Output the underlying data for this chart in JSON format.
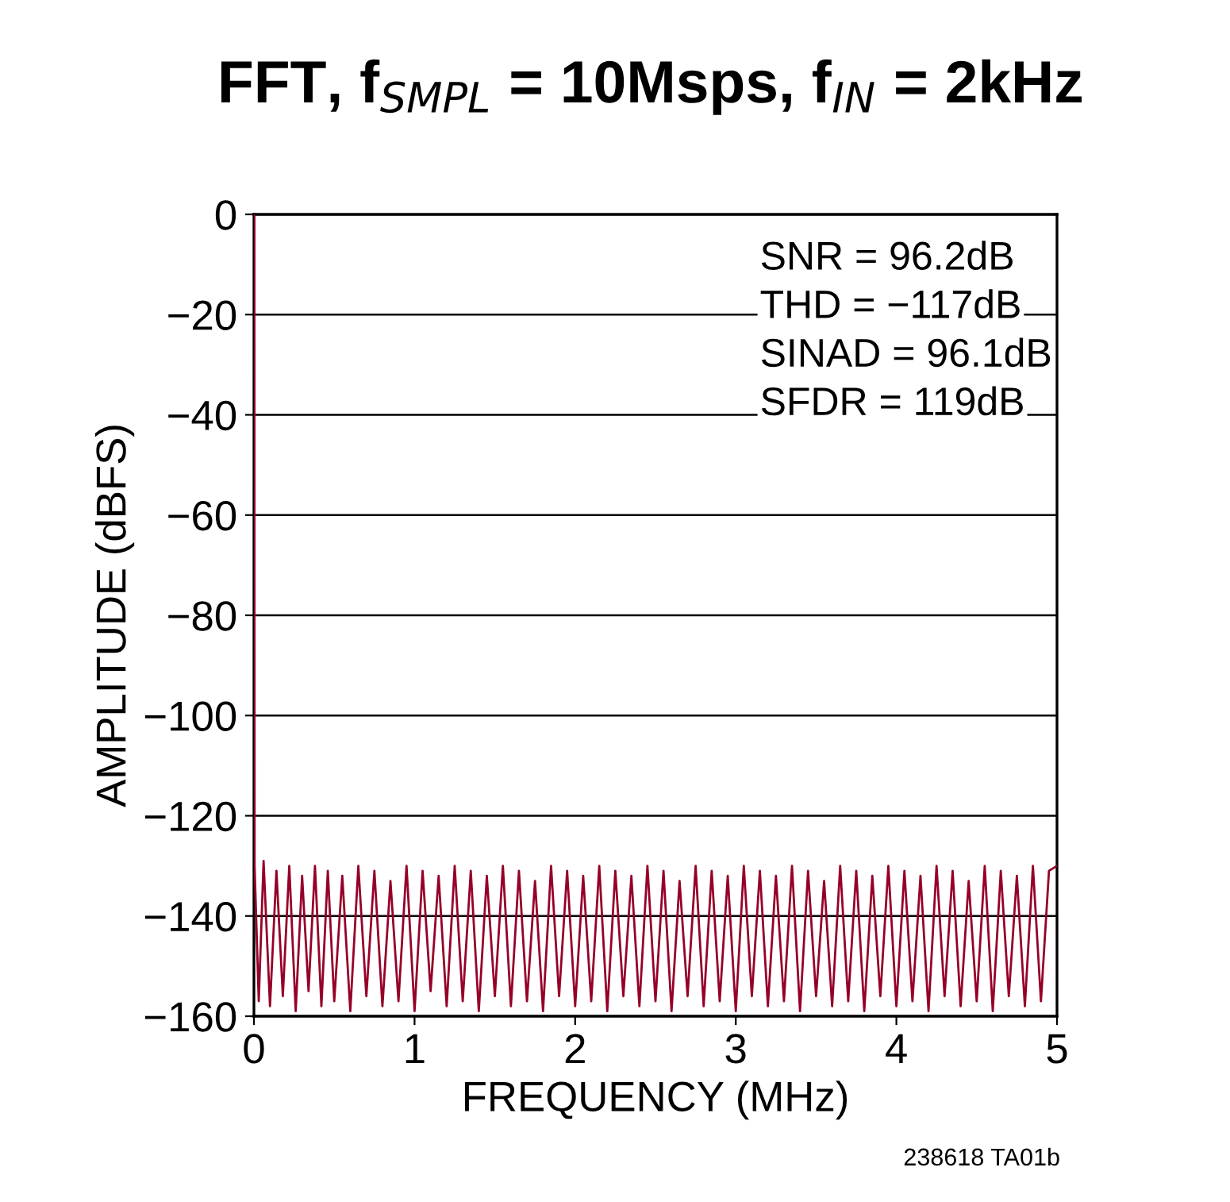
{
  "chart_data": {
    "type": "line",
    "title": "FFT, f$_{SMPL}$ = 10Msps, f$_{IN}$ = 2kHz",
    "xlabel": "FREQUENCY (MHz)",
    "ylabel": "AMPLITUDE (dBFS)",
    "series": [
      {
        "color": "#960028",
        "x": [
          0,
          0.002,
          0.004,
          0.03,
          0.06,
          0.1,
          0.14,
          0.18,
          0.22,
          0.26,
          0.3,
          0.34,
          0.38,
          0.42,
          0.46,
          0.5,
          0.55,
          0.6,
          0.65,
          0.7,
          0.75,
          0.8,
          0.85,
          0.9,
          0.95,
          1.0,
          1.05,
          1.1,
          1.15,
          1.2,
          1.25,
          1.3,
          1.35,
          1.4,
          1.45,
          1.5,
          1.55,
          1.6,
          1.65,
          1.7,
          1.75,
          1.8,
          1.85,
          1.9,
          1.95,
          2.0,
          2.05,
          2.1,
          2.15,
          2.2,
          2.25,
          2.3,
          2.35,
          2.4,
          2.45,
          2.5,
          2.55,
          2.6,
          2.65,
          2.7,
          2.75,
          2.8,
          2.85,
          2.9,
          2.95,
          3.0,
          3.05,
          3.1,
          3.15,
          3.2,
          3.25,
          3.3,
          3.35,
          3.4,
          3.45,
          3.5,
          3.55,
          3.6,
          3.65,
          3.7,
          3.75,
          3.8,
          3.85,
          3.9,
          3.95,
          4.0,
          4.05,
          4.1,
          4.15,
          4.2,
          4.25,
          4.3,
          4.35,
          4.4,
          4.45,
          4.5,
          4.55,
          4.6,
          4.65,
          4.7,
          4.75,
          4.8,
          4.85,
          4.9,
          4.95,
          5.0
        ],
        "values": [
          -130,
          0,
          -130,
          -157,
          -129,
          -158,
          -131,
          -156,
          -130,
          -159,
          -132,
          -155,
          -130,
          -158,
          -131,
          -157,
          -132,
          -159,
          -130,
          -156,
          -131,
          -158,
          -133,
          -157,
          -130,
          -159,
          -131,
          -155,
          -132,
          -158,
          -130,
          -157,
          -131,
          -159,
          -132,
          -156,
          -130,
          -158,
          -131,
          -157,
          -133,
          -159,
          -130,
          -156,
          -131,
          -158,
          -132,
          -157,
          -130,
          -159,
          -131,
          -156,
          -132,
          -158,
          -130,
          -157,
          -131,
          -159,
          -133,
          -156,
          -130,
          -158,
          -131,
          -157,
          -132,
          -159,
          -130,
          -156,
          -131,
          -158,
          -132,
          -157,
          -130,
          -159,
          -131,
          -156,
          -133,
          -158,
          -130,
          -157,
          -131,
          -159,
          -132,
          -156,
          -130,
          -158,
          -131,
          -157,
          -132,
          -159,
          -130,
          -156,
          -131,
          -158,
          -133,
          -157,
          -130,
          -159,
          -131,
          -156,
          -132,
          -158,
          -130,
          -157,
          -131,
          -130
        ]
      }
    ],
    "xlim": [
      0,
      5
    ],
    "xticks": [
      0,
      1,
      2,
      3,
      4,
      5
    ],
    "ylim": [
      -160,
      0
    ],
    "yticks": [
      0,
      {
        "value": -20,
        "label": "−20"
      },
      {
        "value": -40,
        "label": "−40"
      },
      {
        "value": -60,
        "label": "−60"
      },
      {
        "value": -80,
        "label": "−80"
      },
      {
        "value": -100,
        "label": "−100"
      },
      {
        "value": -120,
        "label": "−120"
      },
      {
        "value": -140,
        "label": "−140"
      },
      {
        "value": -160,
        "label": "−160"
      }
    ],
    "grid": "y",
    "annotations": [
      "SNR = 96.2dB",
      "THD = −117dB",
      "SINAD = 96.1dB",
      "SFDR = 119dB",
      "238618 TA01b"
    ]
  }
}
